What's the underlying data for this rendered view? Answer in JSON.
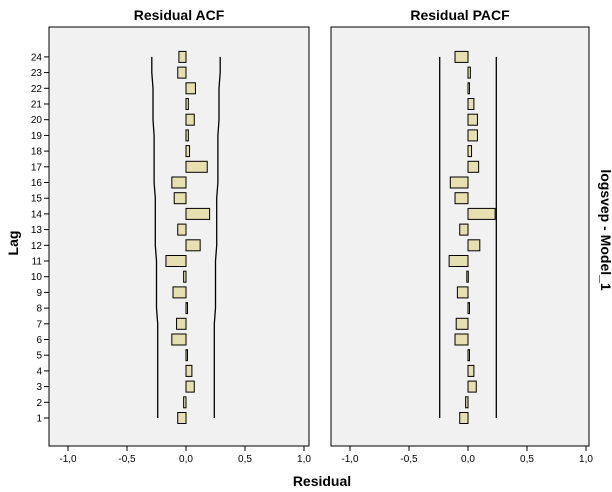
{
  "chart_data": {
    "type": "bar",
    "orientation": "horizontal",
    "xlabel": "Residual",
    "ylabel": "Lag",
    "row_label": "logsvep - Model_1",
    "xlim": [
      -1.0,
      1.0
    ],
    "xticks": [
      "-1,0",
      "-0,5",
      "0,0",
      "0,5",
      "1,0"
    ],
    "lags": [
      1,
      2,
      3,
      4,
      5,
      6,
      7,
      8,
      9,
      10,
      11,
      12,
      13,
      14,
      15,
      16,
      17,
      18,
      19,
      20,
      21,
      22,
      23,
      24
    ],
    "bar_color": "#e6dfaf",
    "panels": [
      {
        "title": "Residual ACF",
        "values": [
          -0.07,
          -0.02,
          0.07,
          0.05,
          0.0,
          -0.12,
          -0.08,
          0.0,
          -0.11,
          -0.02,
          -0.17,
          0.12,
          -0.07,
          0.2,
          -0.1,
          -0.12,
          0.18,
          0.03,
          0.02,
          0.07,
          0.02,
          0.08,
          -0.07,
          -0.06
        ],
        "conf_upper": [
          0.24,
          0.24,
          0.24,
          0.24,
          0.24,
          0.24,
          0.24,
          0.25,
          0.25,
          0.25,
          0.25,
          0.26,
          0.26,
          0.26,
          0.26,
          0.27,
          0.27,
          0.27,
          0.27,
          0.28,
          0.28,
          0.28,
          0.29,
          0.29
        ],
        "conf_lower": [
          -0.24,
          -0.24,
          -0.24,
          -0.24,
          -0.24,
          -0.24,
          -0.24,
          -0.25,
          -0.25,
          -0.25,
          -0.25,
          -0.26,
          -0.26,
          -0.26,
          -0.26,
          -0.27,
          -0.27,
          -0.27,
          -0.27,
          -0.28,
          -0.28,
          -0.28,
          -0.29,
          -0.29
        ]
      },
      {
        "title": "Residual PACF",
        "values": [
          -0.07,
          -0.02,
          0.07,
          0.05,
          0.01,
          -0.11,
          -0.1,
          0.0,
          -0.09,
          -0.01,
          -0.16,
          0.1,
          -0.07,
          0.23,
          -0.11,
          -0.15,
          0.09,
          0.03,
          0.08,
          0.08,
          0.05,
          0.0,
          0.02,
          -0.11
        ],
        "conf_upper": [
          0.24,
          0.24,
          0.24,
          0.24,
          0.24,
          0.24,
          0.24,
          0.24,
          0.24,
          0.24,
          0.24,
          0.24,
          0.24,
          0.24,
          0.24,
          0.24,
          0.24,
          0.24,
          0.24,
          0.24,
          0.24,
          0.24,
          0.24,
          0.24
        ],
        "conf_lower": [
          -0.24,
          -0.24,
          -0.24,
          -0.24,
          -0.24,
          -0.24,
          -0.24,
          -0.24,
          -0.24,
          -0.24,
          -0.24,
          -0.24,
          -0.24,
          -0.24,
          -0.24,
          -0.24,
          -0.24,
          -0.24,
          -0.24,
          -0.24,
          -0.24,
          -0.24,
          -0.24,
          -0.24
        ]
      }
    ]
  }
}
